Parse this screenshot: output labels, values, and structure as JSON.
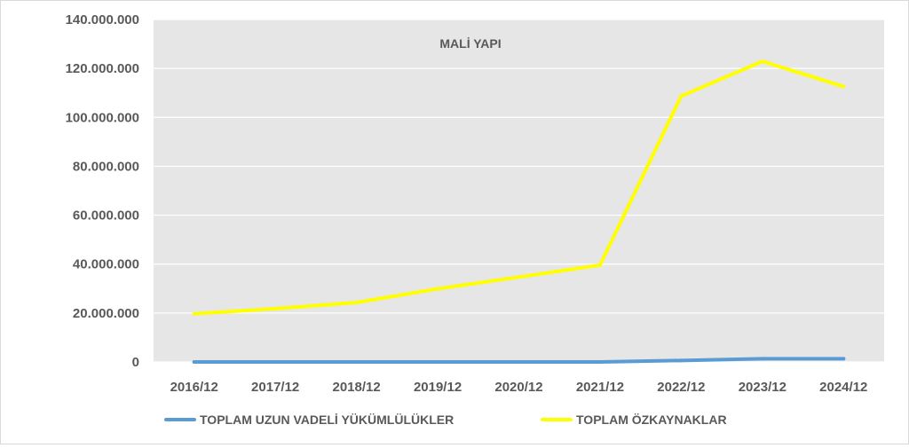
{
  "chart_data": {
    "type": "line",
    "title": "MALİ YAPI",
    "xlabel": "",
    "ylabel": "",
    "categories": [
      "2016/12",
      "2017/12",
      "2018/12",
      "2019/12",
      "2020/12",
      "2021/12",
      "2022/12",
      "2023/12",
      "2024/12"
    ],
    "ylim": [
      0,
      140000000
    ],
    "y_ticks": [
      {
        "value": 0,
        "label": "0"
      },
      {
        "value": 20000000,
        "label": "20.000.000"
      },
      {
        "value": 40000000,
        "label": "40.000.000"
      },
      {
        "value": 60000000,
        "label": "60.000.000"
      },
      {
        "value": 80000000,
        "label": "80.000.000"
      },
      {
        "value": 100000000,
        "label": "100.000.000"
      },
      {
        "value": 120000000,
        "label": "120.000.000"
      },
      {
        "value": 140000000,
        "label": "140.000.000"
      }
    ],
    "grid": true,
    "legend_position": "bottom",
    "series": [
      {
        "name": "TOPLAM UZUN VADELİ YÜKÜMLÜLÜKLER",
        "color": "#5b9bd5",
        "values": [
          0,
          0,
          0,
          0,
          0,
          0,
          600000,
          1300000,
          1300000
        ]
      },
      {
        "name": "TOPLAM ÖZKAYNAKLAR",
        "color": "#ffff00",
        "values": [
          19700000,
          21800000,
          24300000,
          29900000,
          34700000,
          39600000,
          108700000,
          122900000,
          112600000
        ]
      }
    ],
    "plot_background": "#e7e6e6",
    "gridline_color": "#ffffff"
  }
}
